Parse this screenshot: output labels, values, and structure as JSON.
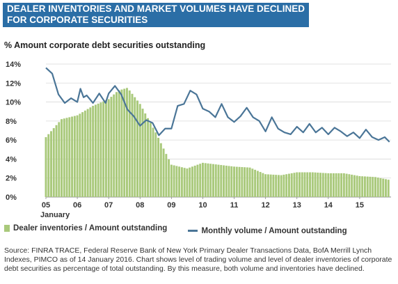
{
  "header": {
    "title_line1": "DEALER INVENTORIES AND MARKET VOLUMES HAVE DECLINED",
    "title_line2": "FOR CORPORATE SECURITIES"
  },
  "chart_data": {
    "type": "bar+line",
    "ylabel": "% Amount corporate debt securities outstanding",
    "ylim": [
      0,
      14
    ],
    "yticks": [
      "0%",
      "2%",
      "4%",
      "6%",
      "8%",
      "10%",
      "12%",
      "14%"
    ],
    "ytick_values": [
      0,
      2,
      4,
      6,
      8,
      10,
      12,
      14
    ],
    "xlim": [
      2005.0,
      2016.0
    ],
    "xticks": [
      "05",
      "06",
      "07",
      "08",
      "09",
      "10",
      "11",
      "12",
      "13",
      "14",
      "15"
    ],
    "xtick_values": [
      2005,
      2006,
      2007,
      2008,
      2009,
      2010,
      2011,
      2012,
      2013,
      2014,
      2015
    ],
    "xtick_sublabel": "January",
    "grid": true,
    "legend": "bottom",
    "series": [
      {
        "name": "Dealer inventories / Amount outstanding",
        "type": "bar",
        "color": "#a9c97b",
        "x": [
          2005.0,
          2005.5,
          2006.0,
          2006.5,
          2007.0,
          2007.3,
          2007.6,
          2008.0,
          2008.5,
          2009.0,
          2009.5,
          2010.0,
          2010.5,
          2011.0,
          2011.5,
          2012.0,
          2012.5,
          2013.0,
          2013.5,
          2014.0,
          2014.5,
          2015.0,
          2015.5,
          2015.95
        ],
        "values": [
          6.3,
          8.2,
          8.6,
          9.6,
          10.3,
          11.2,
          11.5,
          9.8,
          6.8,
          3.4,
          3.0,
          3.6,
          3.4,
          3.2,
          3.1,
          2.4,
          2.3,
          2.6,
          2.6,
          2.5,
          2.5,
          2.2,
          2.1,
          1.8
        ]
      },
      {
        "name": "Monthly volume / Amount outstanding",
        "type": "line",
        "color": "#4a7597",
        "x": [
          2005.0,
          2005.2,
          2005.4,
          2005.6,
          2005.8,
          2006.0,
          2006.1,
          2006.2,
          2006.3,
          2006.5,
          2006.7,
          2006.9,
          2007.0,
          2007.2,
          2007.4,
          2007.6,
          2007.8,
          2008.0,
          2008.2,
          2008.4,
          2008.6,
          2008.8,
          2009.0,
          2009.2,
          2009.4,
          2009.6,
          2009.8,
          2010.0,
          2010.2,
          2010.4,
          2010.6,
          2010.8,
          2011.0,
          2011.2,
          2011.4,
          2011.6,
          2011.8,
          2012.0,
          2012.2,
          2012.4,
          2012.6,
          2012.8,
          2013.0,
          2013.2,
          2013.4,
          2013.6,
          2013.8,
          2014.0,
          2014.2,
          2014.4,
          2014.6,
          2014.8,
          2015.0,
          2015.2,
          2015.4,
          2015.6,
          2015.8,
          2015.95
        ],
        "values": [
          13.6,
          13.0,
          10.8,
          9.9,
          10.4,
          10.0,
          11.4,
          10.5,
          10.7,
          9.9,
          10.9,
          9.9,
          10.9,
          11.7,
          10.8,
          9.2,
          8.5,
          7.5,
          8.1,
          7.8,
          6.5,
          7.2,
          7.2,
          9.6,
          9.8,
          11.2,
          10.8,
          9.3,
          9.0,
          8.4,
          9.8,
          8.4,
          7.9,
          8.5,
          9.4,
          8.4,
          8.0,
          6.9,
          8.4,
          7.2,
          6.8,
          6.6,
          7.4,
          6.8,
          7.7,
          6.8,
          7.3,
          6.6,
          7.3,
          6.9,
          6.4,
          6.8,
          6.2,
          7.1,
          6.3,
          6.0,
          6.3,
          5.8
        ]
      }
    ]
  },
  "source_text": "Source: FINRA TRACE, Federal Reserve Bank of New York Primary Dealer Transactions Data, BofA Merrill Lynch Indexes, PIMCO as of 14 January 2016. Chart shows level of trading volume and level of dealer inventories of corporate debt securities as percentage of total outstanding. By this measure, both volume and inventories have declined."
}
